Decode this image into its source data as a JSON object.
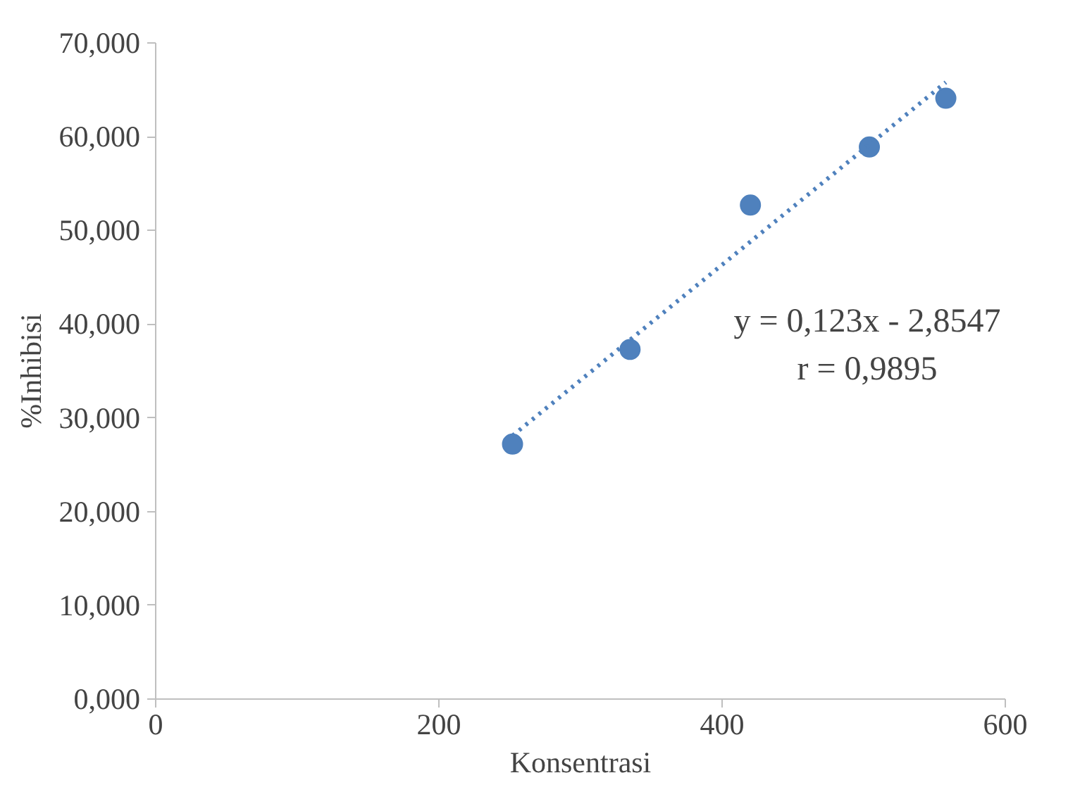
{
  "chart_data": {
    "type": "scatter",
    "xlabel": "Konsentrasi",
    "ylabel": "%Inhibisi",
    "xlim": [
      0,
      600
    ],
    "xticks": [
      0,
      200,
      400,
      600
    ],
    "ylim": [
      0,
      70
    ],
    "yticks": [
      {
        "value": 0,
        "label": "0,000"
      },
      {
        "value": 10,
        "label": "10,000"
      },
      {
        "value": 20,
        "label": "20,000"
      },
      {
        "value": 30,
        "label": "30,000"
      },
      {
        "value": 40,
        "label": "40,000"
      },
      {
        "value": 50,
        "label": "50,000"
      },
      {
        "value": 60,
        "label": "60,000"
      },
      {
        "value": 70,
        "label": "70,000"
      }
    ],
    "grid": false,
    "marker": "circle",
    "series": [
      {
        "color": "#4f81bd",
        "x": [
          252,
          335,
          420,
          504,
          558
        ],
        "values": [
          27.2,
          37.3,
          52.7,
          58.9,
          64.1
        ]
      },
      {
        "type": "line",
        "color": "#4f81bd",
        "line_style": "dotted",
        "marker": "none",
        "x": [
          252,
          558
        ],
        "values": [
          28.1,
          65.8
        ]
      }
    ],
    "annotations": [
      "y = 0,123x - 2,8547",
      "r = 0,9895"
    ]
  }
}
